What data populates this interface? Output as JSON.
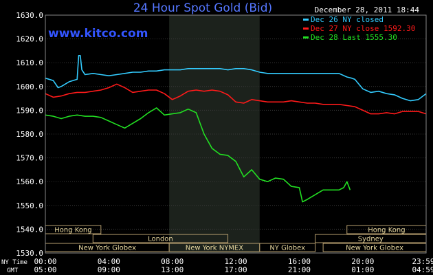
{
  "chart_data": {
    "type": "line",
    "title": "24 Hour Spot Gold (Bid)",
    "date_label": "December 28, 2011 18:44",
    "watermark": "www.kitco.com",
    "ylim": [
      1530,
      1630
    ],
    "y_ticks": [
      "1530.0",
      "1540.0",
      "1550.0",
      "1560.0",
      "1570.0",
      "1580.0",
      "1590.0",
      "1600.0",
      "1610.0",
      "1620.0",
      "1630.0"
    ],
    "x_ticks_ny": [
      "00:00",
      "04:00",
      "08:00",
      "12:00",
      "16:00",
      "20:00",
      "23:59"
    ],
    "x_ticks_gmt": [
      "05:00",
      "09:00",
      "13:00",
      "17:00",
      "21:00",
      "01:00",
      "04:59"
    ],
    "x_row_label_ny": "NY Time",
    "x_row_label_gmt": "GMT",
    "sessions": [
      {
        "name": "Hong Kong",
        "row": 0,
        "start": 0,
        "end": 3.5
      },
      {
        "name": "Hong Kong",
        "row": 0,
        "start": 19.0,
        "end": 23.99
      },
      {
        "name": "London",
        "row": 1,
        "start": 3.0,
        "end": 11.5
      },
      {
        "name": "Sydney",
        "row": 1,
        "start": 17.0,
        "end": 23.99
      },
      {
        "name": "New York Globex",
        "row": 2,
        "start": 0,
        "end": 7.8
      },
      {
        "name": "New York NYMEX",
        "row": 2,
        "start": 7.8,
        "end": 13.5
      },
      {
        "name": "NY Globex",
        "row": 2,
        "start": 13.5,
        "end": 17.0
      },
      {
        "name": "New York Globex",
        "row": 2,
        "start": 17.5,
        "end": 23.99
      }
    ],
    "shaded_session": {
      "start": 7.8,
      "end": 13.5
    },
    "series": [
      {
        "name": "Dec 26 NY closed",
        "color": "#33ccff",
        "x": [
          0,
          0.5,
          0.8,
          1.0,
          1.5,
          2.0,
          2.1,
          2.2,
          2.3,
          2.5,
          3.0,
          3.5,
          4.0,
          4.5,
          5.0,
          5.5,
          6.0,
          6.5,
          7.0,
          7.5,
          8.0,
          8.5,
          9.0,
          9.5,
          10.0,
          10.5,
          11.0,
          11.5,
          12.0,
          12.5,
          13.0,
          13.5,
          14.0,
          14.5,
          15.0,
          15.5,
          16.0,
          16.5,
          17.0,
          17.5,
          18.0,
          18.5,
          19.0,
          19.3,
          19.5,
          20.0,
          20.5,
          21.0,
          21.5,
          22.0,
          22.5,
          23.0,
          23.5,
          23.99
        ],
        "y": [
          1603.5,
          1602.5,
          1599.5,
          1600,
          1602,
          1603,
          1613,
          1613,
          1607,
          1605,
          1605.5,
          1605,
          1604.5,
          1605,
          1605.5,
          1606,
          1606,
          1606.5,
          1606.5,
          1607,
          1607,
          1607,
          1607.5,
          1607.5,
          1607.5,
          1607.5,
          1607.5,
          1607,
          1607.5,
          1607.5,
          1607,
          1606,
          1605.5,
          1605.5,
          1605.5,
          1605.5,
          1605.5,
          1605.5,
          1605.5,
          1605.5,
          1605.5,
          1605.5,
          1604,
          1603.5,
          1603,
          1599,
          1597.5,
          1598,
          1597,
          1596.5,
          1595,
          1594,
          1594.5,
          1597
        ]
      },
      {
        "name": "Dec 27 NY close 1592.30",
        "color": "#ff1a1a",
        "x": [
          0,
          0.5,
          1.0,
          1.5,
          2.0,
          2.5,
          3.0,
          3.5,
          4.0,
          4.5,
          5.0,
          5.5,
          6.0,
          6.5,
          7.0,
          7.5,
          8.0,
          8.5,
          9.0,
          9.5,
          10.0,
          10.5,
          11.0,
          11.5,
          12.0,
          12.5,
          13.0,
          13.5,
          14.0,
          14.5,
          15.0,
          15.5,
          16.0,
          16.5,
          17.0,
          17.5,
          18.0,
          18.5,
          19.0,
          19.5,
          20.0,
          20.5,
          21.0,
          21.5,
          22.0,
          22.5,
          23.0,
          23.5,
          23.99
        ],
        "y": [
          1597,
          1595.5,
          1596,
          1597,
          1597.5,
          1597.5,
          1598,
          1598.5,
          1599.5,
          1601,
          1599.5,
          1597.5,
          1598,
          1598.5,
          1598.5,
          1597,
          1594.5,
          1596,
          1598,
          1598.5,
          1598,
          1598.5,
          1598,
          1596.5,
          1593.5,
          1593,
          1594.5,
          1594,
          1593.5,
          1593.5,
          1593.5,
          1594,
          1593.5,
          1593,
          1593,
          1592.5,
          1592.5,
          1592.5,
          1592,
          1591.5,
          1590,
          1588.5,
          1588.5,
          1589,
          1588.5,
          1589.5,
          1589.5,
          1589.5,
          1588.5
        ]
      },
      {
        "name": "Dec 28 Last 1555.30",
        "color": "#22e022",
        "x": [
          0,
          0.5,
          1.0,
          1.5,
          2.0,
          2.5,
          3.0,
          3.5,
          4.0,
          4.5,
          5.0,
          5.5,
          6.0,
          6.5,
          7.0,
          7.5,
          8.0,
          8.5,
          9.0,
          9.5,
          10.0,
          10.5,
          11.0,
          11.5,
          12.0,
          12.5,
          13.0,
          13.5,
          14.0,
          14.5,
          15.0,
          15.5,
          16.0,
          16.2,
          16.5,
          17.0,
          17.5,
          18.0,
          18.5,
          18.8,
          19.0,
          19.2
        ],
        "y": [
          1588,
          1587.5,
          1586.5,
          1587.5,
          1588,
          1587.5,
          1587.5,
          1587,
          1585.5,
          1584,
          1582.5,
          1584.5,
          1586.5,
          1589,
          1591,
          1588,
          1588.5,
          1589,
          1590.5,
          1589,
          1580,
          1574,
          1571.5,
          1571,
          1568.5,
          1562,
          1565,
          1561,
          1560,
          1561.5,
          1561,
          1558,
          1557.5,
          1551.5,
          1552.5,
          1554.5,
          1556.5,
          1556.5,
          1556.5,
          1557.5,
          1560,
          1556.5
        ]
      }
    ]
  }
}
